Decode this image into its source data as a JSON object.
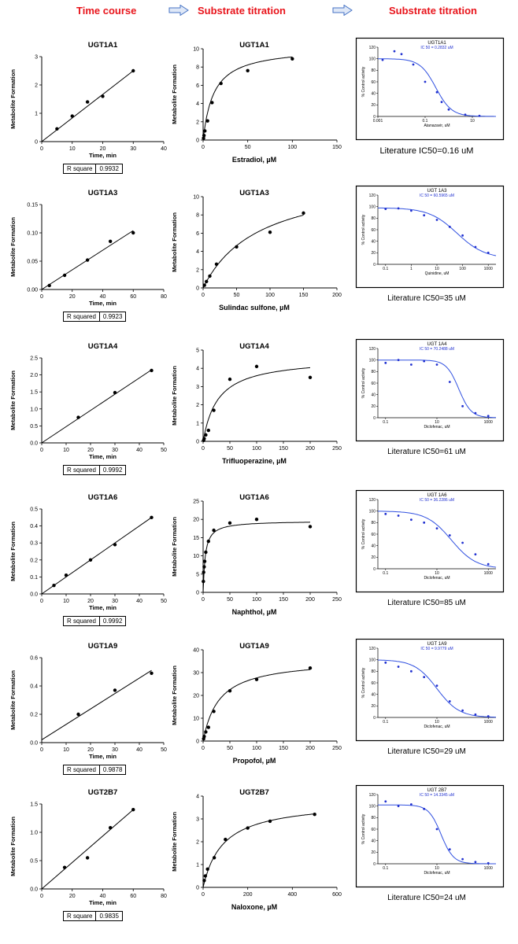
{
  "headers": {
    "col1": "Time course",
    "col2": "Substrate titration",
    "col3": "Substrate titration",
    "arrow_color": "#4472c4",
    "color": "#e8141b"
  },
  "chart_data": [
    {
      "type": "scatter",
      "panel": "timecourse",
      "title": "UGT1A1",
      "xlabel": "Time, min",
      "ylabel": "Metabolite Formation",
      "xlim": [
        0,
        40
      ],
      "ylim": [
        0,
        3
      ],
      "xticks": [
        0,
        10,
        20,
        30,
        40
      ],
      "yticks": [
        0,
        1,
        2,
        3
      ],
      "ytick_labels": [
        "0",
        "1",
        "2",
        "3"
      ],
      "x": [
        5,
        10,
        15,
        20,
        30
      ],
      "y": [
        0.45,
        0.9,
        1.4,
        1.6,
        2.5
      ],
      "fit": {
        "kind": "linear",
        "x": [
          0,
          30
        ],
        "y": [
          0,
          2.5
        ]
      },
      "rsq_label": "R square",
      "rsq_value": "0.9932"
    },
    {
      "type": "scatter",
      "panel": "titration",
      "title": "UGT1A1",
      "xlabel": "Estradiol, µM",
      "ylabel": "Metabolite Formation",
      "xlim": [
        0,
        150
      ],
      "ylim": [
        0,
        10
      ],
      "xticks": [
        0,
        50,
        100,
        150
      ],
      "yticks": [
        0,
        2,
        4,
        6,
        8,
        10
      ],
      "ytick_labels": [
        "0",
        "2",
        "4",
        "6",
        "8",
        "10"
      ],
      "x": [
        0.5,
        1,
        2,
        5,
        10,
        20,
        50,
        100
      ],
      "y": [
        0.2,
        0.5,
        1,
        2.1,
        4.1,
        6.2,
        7.6,
        8.9
      ],
      "fit": {
        "kind": "mm",
        "vmax": 10.2,
        "km": 12,
        "xmax": 100
      }
    },
    {
      "type": "sigmoid",
      "panel": "ic50",
      "title": "UGT1A1",
      "subtitle": "IC 50 = 0.2832 uM",
      "xlabel": "Atanazavir, uM",
      "ylabel": "% Control activity",
      "xlim": [
        -3,
        2
      ],
      "xticks": [
        -3,
        -1,
        1
      ],
      "xtick_labels": [
        "0.001",
        "0.1",
        "10"
      ],
      "ylim": [
        0,
        120
      ],
      "yticks": [
        0,
        20,
        40,
        60,
        80,
        100,
        120
      ],
      "ytick_labels": [
        "0",
        "20",
        "40",
        "60",
        "80",
        "100",
        "120"
      ],
      "logx": [
        -2.8,
        -2.3,
        -2.0,
        -1.5,
        -1.0,
        -0.5,
        -0.3,
        0.0,
        0.7,
        1.3
      ],
      "y": [
        98,
        113,
        108,
        90,
        60,
        42,
        25,
        12,
        3,
        1
      ],
      "fit": {
        "top": 100,
        "bottom": 0,
        "logic50": -0.548,
        "hill": 1.3
      },
      "caption": "Literature IC50=0.16 uM"
    },
    {
      "type": "scatter",
      "panel": "timecourse",
      "title": "UGT1A3",
      "xlabel": "Time, min",
      "ylabel": "Metabolite Formation",
      "xlim": [
        0,
        80
      ],
      "ylim": [
        0,
        0.15
      ],
      "xticks": [
        0,
        20,
        40,
        60,
        80
      ],
      "yticks": [
        0,
        0.05,
        0.1,
        0.15
      ],
      "ytick_labels": [
        "0.00",
        "0.05",
        "0.10",
        "0.15"
      ],
      "x": [
        5,
        15,
        30,
        45,
        60
      ],
      "y": [
        0.007,
        0.025,
        0.052,
        0.085,
        0.1
      ],
      "fit": {
        "kind": "linear",
        "x": [
          0,
          60
        ],
        "y": [
          0,
          0.104
        ]
      },
      "rsq_label": "R squared",
      "rsq_value": "0.9923"
    },
    {
      "type": "scatter",
      "panel": "titration",
      "title": "UGT1A3",
      "xlabel": "Sulindac sulfone, µM",
      "ylabel": "Metabolite Formation",
      "xlim": [
        0,
        200
      ],
      "ylim": [
        0,
        10
      ],
      "xticks": [
        0,
        50,
        100,
        150,
        200
      ],
      "yticks": [
        0,
        2,
        4,
        6,
        8,
        10
      ],
      "ytick_labels": [
        "0",
        "2",
        "4",
        "6",
        "8",
        "10"
      ],
      "x": [
        2,
        5,
        10,
        20,
        50,
        100,
        150
      ],
      "y": [
        0.3,
        0.7,
        1.3,
        2.6,
        4.5,
        6.1,
        8.2
      ],
      "fit": {
        "kind": "mm",
        "vmax": 12.5,
        "km": 85,
        "xmax": 150
      }
    },
    {
      "type": "sigmoid",
      "panel": "ic50",
      "title": "UGT 1A3",
      "subtitle": "IC 50 = 60.5965 uM",
      "xlabel": "Quinidine, uM",
      "ylabel": "% Control activity",
      "xlim": [
        -1.3,
        3.3
      ],
      "xticks": [
        -1,
        0,
        1,
        2,
        3
      ],
      "xtick_labels": [
        "0.1",
        "1",
        "10",
        "100",
        "1000"
      ],
      "ylim": [
        0,
        120
      ],
      "yticks": [
        0,
        20,
        40,
        60,
        80,
        100,
        120
      ],
      "ytick_labels": [
        "0",
        "20",
        "40",
        "60",
        "80",
        "100",
        "120"
      ],
      "logx": [
        -1,
        -0.5,
        0,
        0.5,
        1,
        1.5,
        2,
        2.5,
        3
      ],
      "y": [
        96,
        97,
        93,
        85,
        77,
        65,
        50,
        30,
        20
      ],
      "fit": {
        "top": 98,
        "bottom": 10,
        "logic50": 1.78,
        "hill": 0.8
      },
      "caption": "Literature IC50=35 uM"
    },
    {
      "type": "scatter",
      "panel": "timecourse",
      "title": "UGT1A4",
      "xlabel": "Time, min",
      "ylabel": "Metabolite Formation",
      "xlim": [
        0,
        50
      ],
      "ylim": [
        0,
        2.5
      ],
      "xticks": [
        0,
        10,
        20,
        30,
        40,
        50
      ],
      "yticks": [
        0,
        0.5,
        1,
        1.5,
        2,
        2.5
      ],
      "ytick_labels": [
        "0.0",
        "0.5",
        "1.0",
        "1.5",
        "2.0",
        "2.5"
      ],
      "x": [
        15,
        30,
        45
      ],
      "y": [
        0.75,
        1.48,
        2.13
      ],
      "fit": {
        "kind": "linear",
        "x": [
          0,
          45
        ],
        "y": [
          0,
          2.15
        ]
      },
      "rsq_label": "R squared",
      "rsq_value": "0.9992"
    },
    {
      "type": "scatter",
      "panel": "titration",
      "title": "UGT1A4",
      "xlabel": "Trifluoperazine, µM",
      "ylabel": "Metabolite Formation",
      "xlim": [
        0,
        250
      ],
      "ylim": [
        0,
        5
      ],
      "xticks": [
        0,
        50,
        100,
        150,
        200,
        250
      ],
      "yticks": [
        0,
        1,
        2,
        3,
        4,
        5
      ],
      "ytick_labels": [
        "0",
        "1",
        "2",
        "3",
        "4",
        "5"
      ],
      "x": [
        1,
        2,
        5,
        10,
        20,
        50,
        100,
        200
      ],
      "y": [
        0.05,
        0.15,
        0.35,
        0.6,
        1.7,
        3.4,
        4.1,
        3.5
      ],
      "fit": {
        "kind": "mm",
        "vmax": 4.6,
        "km": 28,
        "xmax": 200
      }
    },
    {
      "type": "sigmoid",
      "panel": "ic50",
      "title": "UGT 1A4",
      "subtitle": "IC 50 = 70.2488 uM",
      "xlabel": "Diclofenac, uM",
      "ylabel": "% Control activity",
      "xlim": [
        -1.3,
        3.3
      ],
      "xticks": [
        -1,
        1,
        3
      ],
      "xtick_labels": [
        "0.1",
        "10",
        "1000"
      ],
      "ylim": [
        0,
        120
      ],
      "yticks": [
        0,
        20,
        40,
        60,
        80,
        100,
        120
      ],
      "ytick_labels": [
        "0",
        "20",
        "40",
        "60",
        "80",
        "100",
        "120"
      ],
      "logx": [
        -1,
        -0.5,
        0,
        0.5,
        1,
        1.5,
        2,
        2.5,
        3
      ],
      "y": [
        95,
        100,
        92,
        98,
        92,
        62,
        20,
        8,
        3
      ],
      "fit": {
        "top": 100,
        "bottom": 0,
        "logic50": 1.85,
        "hill": 1.8
      },
      "caption": "Literature IC50=61 uM"
    },
    {
      "type": "scatter",
      "panel": "timecourse",
      "title": "UGT1A6",
      "xlabel": "Time, min",
      "ylabel": "Metabolite Formation",
      "xlim": [
        0,
        50
      ],
      "ylim": [
        0,
        0.5
      ],
      "xticks": [
        0,
        10,
        20,
        30,
        40,
        50
      ],
      "yticks": [
        0,
        0.1,
        0.2,
        0.3,
        0.4,
        0.5
      ],
      "ytick_labels": [
        "0.0",
        "0.1",
        "0.2",
        "0.3",
        "0.4",
        "0.5"
      ],
      "x": [
        5,
        10,
        20,
        30,
        45
      ],
      "y": [
        0.05,
        0.11,
        0.2,
        0.29,
        0.45
      ],
      "fit": {
        "kind": "linear",
        "x": [
          0,
          45
        ],
        "y": [
          0,
          0.45
        ]
      },
      "rsq_label": "R squared",
      "rsq_value": "0.9992"
    },
    {
      "type": "scatter",
      "panel": "titration",
      "title": "UGT1A6",
      "xlabel": "Naphthol, µM",
      "ylabel": "Metabolite Formation",
      "xlim": [
        0,
        250
      ],
      "ylim": [
        0,
        25
      ],
      "xticks": [
        0,
        50,
        100,
        150,
        200,
        250
      ],
      "yticks": [
        0,
        5,
        10,
        15,
        20,
        25
      ],
      "ytick_labels": [
        "0",
        "5",
        "10",
        "15",
        "20",
        "25"
      ],
      "x": [
        0.5,
        1,
        2,
        3,
        5,
        10,
        20,
        50,
        100,
        200
      ],
      "y": [
        3,
        5.5,
        7,
        8.5,
        11,
        14,
        17,
        19,
        20,
        18
      ],
      "fit": {
        "kind": "mm",
        "vmax": 19.6,
        "km": 4,
        "xmax": 200
      }
    },
    {
      "type": "sigmoid",
      "panel": "ic50",
      "title": "UGT 1A6",
      "subtitle": "IC 50 = 36.2286 uM",
      "xlabel": "Diclofenac, uM",
      "ylabel": "% Control activity",
      "xlim": [
        -1.3,
        3.3
      ],
      "xticks": [
        -1,
        1,
        3
      ],
      "xtick_labels": [
        "0.1",
        "10",
        "1000"
      ],
      "ylim": [
        0,
        120
      ],
      "yticks": [
        0,
        20,
        40,
        60,
        80,
        100,
        120
      ],
      "ytick_labels": [
        "0",
        "20",
        "40",
        "60",
        "80",
        "100",
        "120"
      ],
      "logx": [
        -1,
        -0.5,
        0,
        0.5,
        1,
        1.5,
        2,
        2.5,
        3
      ],
      "y": [
        95,
        92,
        85,
        80,
        70,
        58,
        45,
        25,
        8
      ],
      "fit": {
        "top": 100,
        "bottom": 0,
        "logic50": 1.56,
        "hill": 0.9
      },
      "caption": "Literature IC50=85 uM"
    },
    {
      "type": "scatter",
      "panel": "timecourse",
      "title": "UGT1A9",
      "xlabel": "Time, min",
      "ylabel": "Metabolite Formation",
      "xlim": [
        0,
        50
      ],
      "ylim": [
        0,
        0.6
      ],
      "xticks": [
        0,
        10,
        20,
        30,
        40,
        50
      ],
      "yticks": [
        0,
        0.2,
        0.4,
        0.6
      ],
      "ytick_labels": [
        "0.0",
        "0.2",
        "0.4",
        "0.6"
      ],
      "x": [
        15,
        30,
        45
      ],
      "y": [
        0.2,
        0.37,
        0.49
      ],
      "fit": {
        "kind": "linear",
        "x": [
          0,
          45
        ],
        "y": [
          0.02,
          0.51
        ]
      },
      "rsq_label": "R squared",
      "rsq_value": "0.9878"
    },
    {
      "type": "scatter",
      "panel": "titration",
      "title": "UGT1A9",
      "xlabel": "Propofol, µM",
      "ylabel": "Metabolite Formation",
      "xlim": [
        0,
        250
      ],
      "ylim": [
        0,
        40
      ],
      "xticks": [
        0,
        50,
        100,
        150,
        200,
        250
      ],
      "yticks": [
        0,
        10,
        20,
        30,
        40
      ],
      "ytick_labels": [
        "0",
        "10",
        "20",
        "30",
        "40"
      ],
      "x": [
        1,
        2,
        5,
        10,
        20,
        50,
        100,
        200
      ],
      "y": [
        1,
        2,
        4,
        6,
        13,
        22,
        27,
        32
      ],
      "fit": {
        "kind": "mm",
        "vmax": 36,
        "km": 30,
        "xmax": 200
      }
    },
    {
      "type": "sigmoid",
      "panel": "ic50",
      "title": "UGT 1A9",
      "subtitle": "IC 50 = 9.9779 uM",
      "xlabel": "Diclofenac, uM",
      "ylabel": "% Control activity",
      "xlim": [
        -1.3,
        3.3
      ],
      "xticks": [
        -1,
        1,
        3
      ],
      "xtick_labels": [
        "0.1",
        "10",
        "1000"
      ],
      "ylim": [
        0,
        120
      ],
      "yticks": [
        0,
        20,
        40,
        60,
        80,
        100,
        120
      ],
      "ytick_labels": [
        "0",
        "20",
        "40",
        "60",
        "80",
        "100",
        "120"
      ],
      "logx": [
        -1,
        -0.5,
        0,
        0.5,
        1,
        1.5,
        2,
        2.5,
        3
      ],
      "y": [
        95,
        88,
        80,
        70,
        55,
        28,
        12,
        5,
        2
      ],
      "fit": {
        "top": 100,
        "bottom": 0,
        "logic50": 1.0,
        "hill": 1.0
      },
      "caption": "Literature IC50=29 uM"
    },
    {
      "type": "scatter",
      "panel": "timecourse",
      "title": "UGT2B7",
      "xlabel": "Time, min",
      "ylabel": "Metabolite Formation",
      "xlim": [
        0,
        80
      ],
      "ylim": [
        0,
        1.5
      ],
      "xticks": [
        0,
        20,
        40,
        60,
        80
      ],
      "yticks": [
        0,
        0.5,
        1,
        1.5
      ],
      "ytick_labels": [
        "0.0",
        "0.5",
        "1.0",
        "1.5"
      ],
      "x": [
        15,
        30,
        45,
        60
      ],
      "y": [
        0.38,
        0.55,
        1.08,
        1.4
      ],
      "fit": {
        "kind": "linear",
        "x": [
          0,
          60
        ],
        "y": [
          0,
          1.4
        ]
      },
      "rsq_label": "R square",
      "rsq_value": "0.9835"
    },
    {
      "type": "scatter",
      "panel": "titration",
      "title": "UGT2B7",
      "xlabel": "Naloxone, µM",
      "ylabel": "Metabolite Formation",
      "xlim": [
        0,
        600
      ],
      "ylim": [
        0,
        4
      ],
      "xticks": [
        0,
        200,
        400,
        600
      ],
      "yticks": [
        0,
        1,
        2,
        3,
        4
      ],
      "ytick_labels": [
        "0",
        "1",
        "2",
        "3",
        "4"
      ],
      "x": [
        5,
        10,
        20,
        50,
        100,
        200,
        300,
        500
      ],
      "y": [
        0.3,
        0.5,
        0.8,
        1.3,
        2.1,
        2.6,
        2.9,
        3.2
      ],
      "fit": {
        "kind": "mm",
        "vmax": 3.8,
        "km": 90,
        "xmax": 500
      }
    },
    {
      "type": "sigmoid",
      "panel": "ic50",
      "title": "UGT 2B7",
      "subtitle": "IC 50 = 14.3345 uM",
      "xlabel": "Diclofenac, uM",
      "ylabel": "% Control activity",
      "xlim": [
        -1.3,
        3.3
      ],
      "xticks": [
        -1,
        1,
        3
      ],
      "xtick_labels": [
        "0.1",
        "10",
        "1000"
      ],
      "ylim": [
        0,
        120
      ],
      "yticks": [
        0,
        20,
        40,
        60,
        80,
        100,
        120
      ],
      "ytick_labels": [
        "0",
        "20",
        "40",
        "60",
        "80",
        "100",
        "120"
      ],
      "logx": [
        -1,
        -0.5,
        0,
        0.5,
        1,
        1.5,
        2,
        2.5,
        3
      ],
      "y": [
        108,
        100,
        103,
        95,
        60,
        25,
        8,
        3,
        1
      ],
      "fit": {
        "top": 102,
        "bottom": 0,
        "logic50": 1.16,
        "hill": 1.8
      },
      "caption": "Literature IC50=24 uM"
    }
  ]
}
